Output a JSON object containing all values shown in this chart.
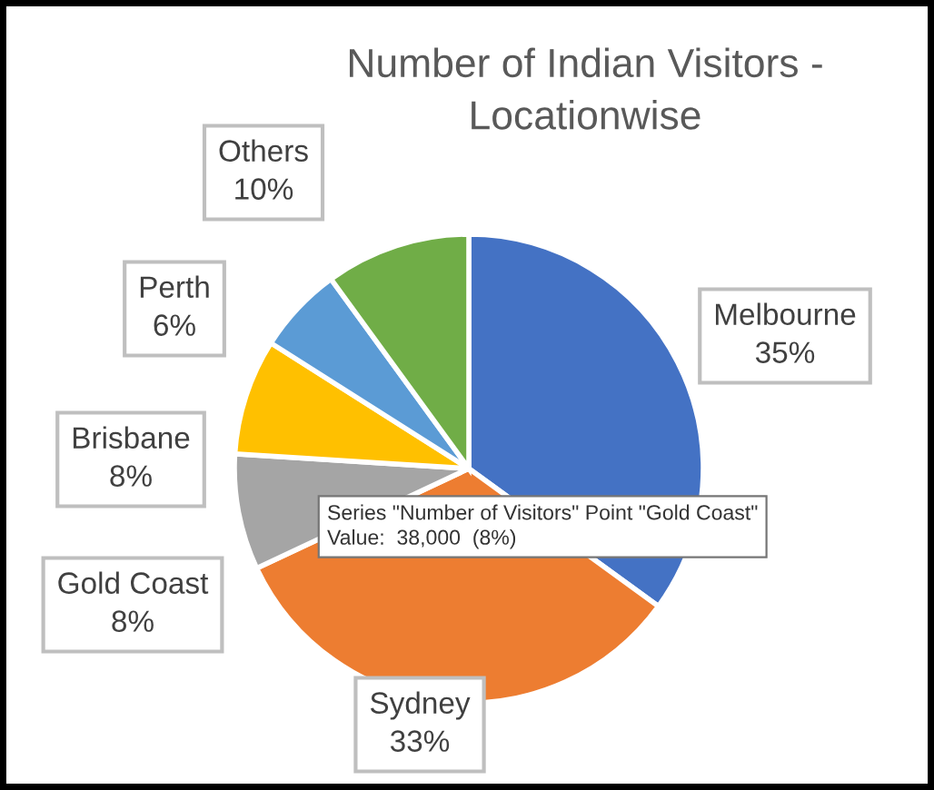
{
  "chart_data": {
    "type": "pie",
    "title": "Number of Indian Visitors -\nLocationwise",
    "categories": [
      "Melbourne",
      "Sydney",
      "Gold Coast",
      "Brisbane",
      "Perth",
      "Others"
    ],
    "values": [
      35,
      33,
      8,
      8,
      6,
      10
    ],
    "value_labels": [
      "35%",
      "33%",
      "8%",
      "8%",
      "6%",
      "10%"
    ],
    "colors": [
      "#4472c4",
      "#ed7d31",
      "#a5a5a5",
      "#ffc000",
      "#5b9bd5",
      "#70ad47"
    ],
    "annotations": [
      "Series \"Number of Visitors\" Point \"Gold Coast\"\nValue:  38,000  (8%)"
    ]
  }
}
